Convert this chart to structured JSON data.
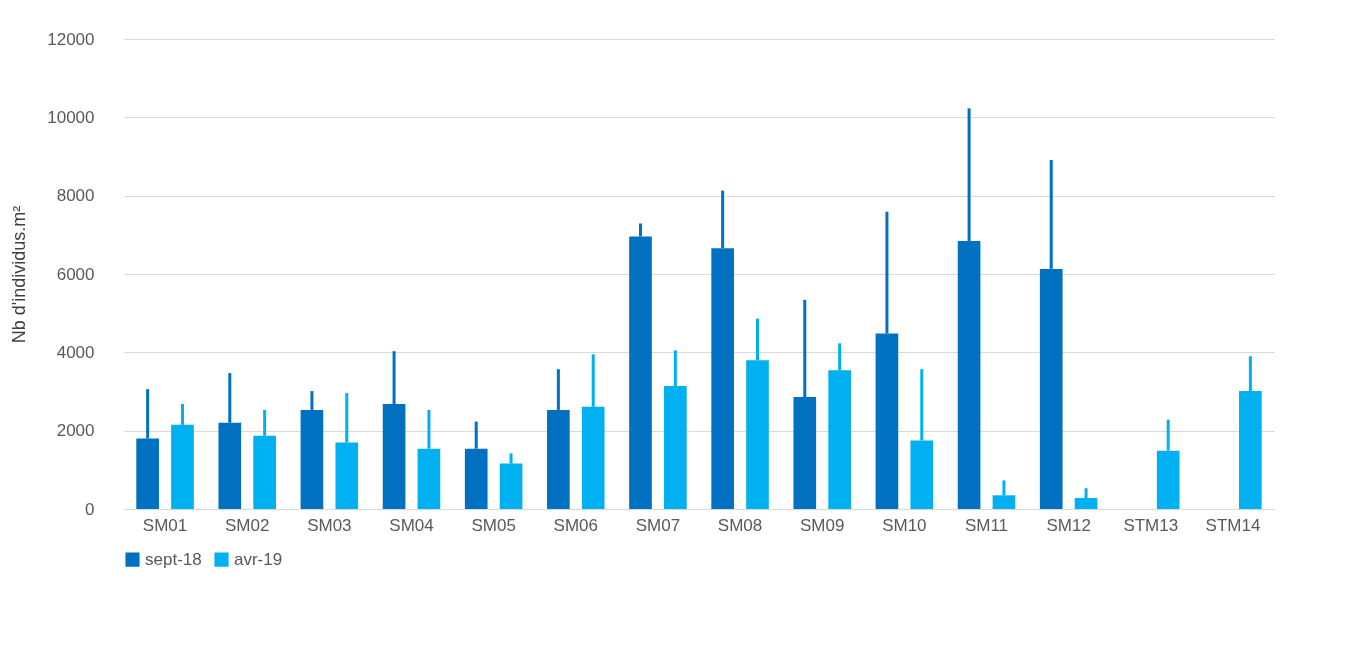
{
  "chart_data": {
    "type": "bar",
    "ylabel": "Nb d'individus.m²",
    "categories": [
      "SM01",
      "SM02",
      "SM03",
      "SM04",
      "SM05",
      "SM06",
      "SM07",
      "SM08",
      "SM09",
      "SM10",
      "SM11",
      "SM12",
      "STM13",
      "STM14"
    ],
    "series": [
      {
        "name": "sept-18",
        "color": "#0070c0",
        "values": [
          1800,
          2200,
          2530,
          2680,
          1540,
          2530,
          6960,
          6660,
          2860,
          4480,
          6840,
          6130,
          null,
          null
        ],
        "errors": [
          [
            1800,
            3060
          ],
          [
            2200,
            3470
          ],
          [
            2530,
            3010
          ],
          [
            2680,
            4030
          ],
          [
            1540,
            2230
          ],
          [
            2530,
            3570
          ],
          [
            6960,
            7290
          ],
          [
            6660,
            8130
          ],
          [
            2860,
            5340
          ],
          [
            4480,
            7590
          ],
          [
            6840,
            10230
          ],
          [
            6130,
            8910
          ],
          null,
          null
        ]
      },
      {
        "name": "avr-19",
        "color": "#00b0f0",
        "values": [
          2150,
          1870,
          1700,
          1540,
          1160,
          2610,
          3140,
          3800,
          3540,
          1750,
          350,
          280,
          1490,
          3010
        ],
        "errors": [
          [
            2150,
            2680
          ],
          [
            1870,
            2530
          ],
          [
            1700,
            2960
          ],
          [
            1540,
            2530
          ],
          [
            1160,
            1420
          ],
          [
            2610,
            3950
          ],
          [
            3140,
            4050
          ],
          [
            3800,
            4860
          ],
          [
            3540,
            4230
          ],
          [
            1750,
            3570
          ],
          [
            350,
            730
          ],
          [
            280,
            530
          ],
          [
            1490,
            2280
          ],
          [
            3010,
            3900
          ]
        ]
      }
    ],
    "ylim": [
      0,
      12000
    ],
    "yticks": [
      0,
      2000,
      4000,
      6000,
      8000,
      10000,
      12000
    ],
    "grid": "y",
    "legend": "bottom"
  }
}
